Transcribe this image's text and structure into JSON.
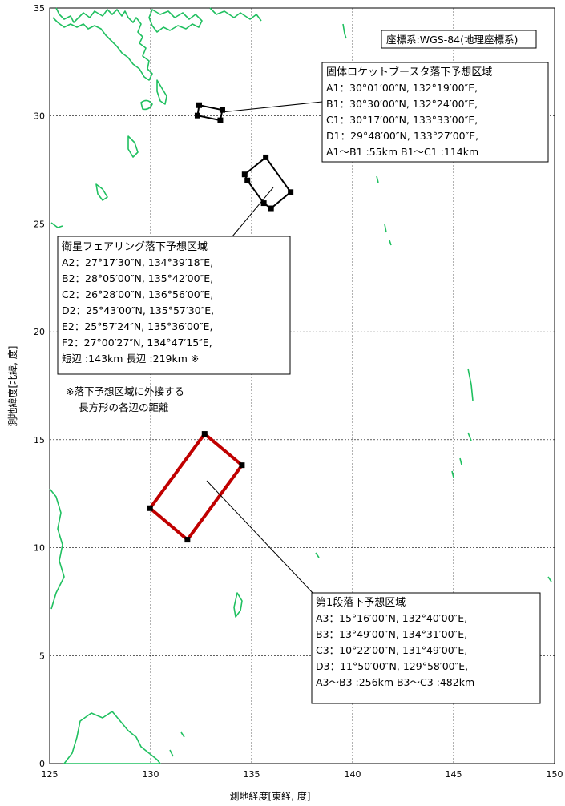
{
  "axes": {
    "x_label": "測地経度[東経, 度]",
    "y_label": "測地緯度[北緯, 度]",
    "x_ticks": [
      125,
      130,
      135,
      140,
      145,
      150
    ],
    "y_ticks": [
      0,
      5,
      10,
      15,
      20,
      25,
      30,
      35
    ]
  },
  "crs_label": "座標系:WGS-84(地理座標系)",
  "note": {
    "line1": "※落下予想区域に外接する",
    "line2": "長方形の各辺の距離"
  },
  "colors": {
    "coastline": "#20c060",
    "zone_solid": "#000000",
    "zone_stage1": "#c00000",
    "grid": "#000000"
  },
  "zones": [
    {
      "id": "solid-booster",
      "title": "固体ロケットブースタ落下予想区域",
      "lines": [
        "A1：30°01′00″N, 132°19′00″E,",
        "B1：30°30′00″N, 132°24′00″E,",
        "C1：30°17′00″N, 133°33′00″E,",
        "D1：29°48′00″N, 133°27′00″E,",
        "A1〜B1 :55km B1〜C1 :114km"
      ],
      "points": [
        [
          132.32,
          30.02
        ],
        [
          132.4,
          30.5
        ],
        [
          133.55,
          30.28
        ],
        [
          133.45,
          29.8
        ]
      ]
    },
    {
      "id": "fairing",
      "title": "衛星フェアリング落下予想区域",
      "lines": [
        "A2：27°17′30″N, 134°39′18″E,",
        "B2：28°05′00″N, 135°42′00″E,",
        "C2：26°28′00″N, 136°56′00″E,",
        "D2：25°43′00″N, 135°57′30″E,",
        "E2：25°57′24″N, 135°36′00″E,",
        "F2：27°00′27″N, 134°47′15″E,",
        "短辺 :143km 長辺 :219km ※"
      ],
      "points": [
        [
          134.655,
          27.29
        ],
        [
          135.7,
          28.08
        ],
        [
          136.93,
          26.47
        ],
        [
          135.96,
          25.72
        ],
        [
          135.6,
          25.96
        ],
        [
          134.79,
          27.01
        ]
      ]
    },
    {
      "id": "stage1",
      "title": "第1段落下予想区域",
      "lines": [
        "A3：15°16′00″N, 132°40′00″E,",
        "B3：13°49′00″N, 134°31′00″E,",
        "C3：10°22′00″N, 131°49′00″E,",
        "D3：11°50′00″N, 129°58′00″E,",
        "A3〜B3 :256km B3〜C3 :482km"
      ],
      "points": [
        [
          132.67,
          15.27
        ],
        [
          134.52,
          13.82
        ],
        [
          131.82,
          10.37
        ],
        [
          129.97,
          11.83
        ]
      ]
    }
  ]
}
